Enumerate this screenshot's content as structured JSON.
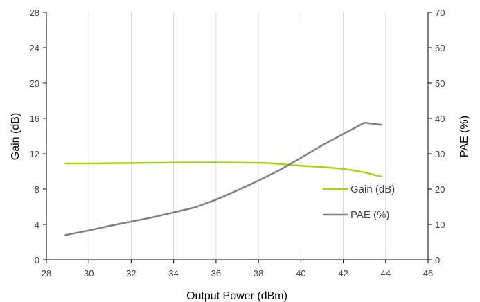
{
  "chart_data": {
    "type": "line",
    "title": "",
    "xlabel": "Output Power (dBm)",
    "ylabel": "Gain (dB)",
    "y2label": "PAE (%)",
    "xlim": [
      28,
      46
    ],
    "ylim": [
      0,
      28
    ],
    "y2lim": [
      0,
      70
    ],
    "xticks": [
      28,
      30,
      32,
      34,
      36,
      38,
      40,
      42,
      44,
      46
    ],
    "yticks": [
      0,
      4,
      8,
      12,
      16,
      20,
      24,
      28
    ],
    "y2ticks": [
      0,
      10,
      20,
      30,
      40,
      50,
      60,
      70
    ],
    "grid": "vertical",
    "legend": "right",
    "series": [
      {
        "name": "Gain (dB)",
        "axis": "left",
        "color": "#a2d614",
        "x": [
          28.9,
          30,
          32,
          34,
          35,
          36,
          37,
          38,
          38.4,
          39,
          40,
          41,
          42,
          42.5,
          43,
          43.4,
          43.8
        ],
        "y": [
          10.9,
          10.9,
          10.95,
          11.0,
          11.02,
          11.02,
          11.0,
          10.97,
          10.95,
          10.85,
          10.65,
          10.5,
          10.3,
          10.1,
          9.9,
          9.65,
          9.4
        ]
      },
      {
        "name": "PAE (%)",
        "axis": "right",
        "color": "#7f7f7f",
        "x": [
          28.9,
          30,
          31,
          32,
          33,
          34,
          35,
          36,
          37,
          38,
          39,
          40,
          41,
          42,
          43,
          43.8
        ],
        "y": [
          7,
          8.3,
          9.6,
          10.8,
          12.0,
          13.4,
          14.8,
          17.0,
          19.6,
          22.4,
          25.4,
          28.8,
          32.4,
          35.6,
          38.8,
          38.2
        ]
      }
    ]
  }
}
